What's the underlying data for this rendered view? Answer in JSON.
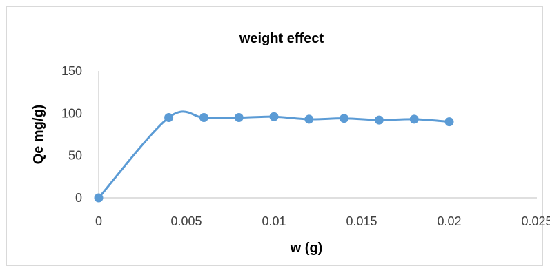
{
  "chart_data": {
    "type": "line",
    "title": "weight effect",
    "xlabel": "w (g)",
    "ylabel": "Qe mg/g)",
    "xlim": [
      0,
      0.025
    ],
    "ylim": [
      0,
      150
    ],
    "x_ticks": [
      "0",
      "0.005",
      "0.01",
      "0.015",
      "0.02",
      "0.025"
    ],
    "y_ticks": [
      "0",
      "50",
      "100",
      "150"
    ],
    "grid": false,
    "legend": "none",
    "smoothed": true,
    "series": [
      {
        "color": "#5b9bd5",
        "x": [
          0,
          0.004,
          0.006,
          0.008,
          0.01,
          0.012,
          0.014,
          0.016,
          0.018,
          0.02
        ],
        "y": [
          0,
          95,
          95,
          95,
          96,
          93,
          94,
          92,
          93,
          90
        ]
      }
    ]
  }
}
